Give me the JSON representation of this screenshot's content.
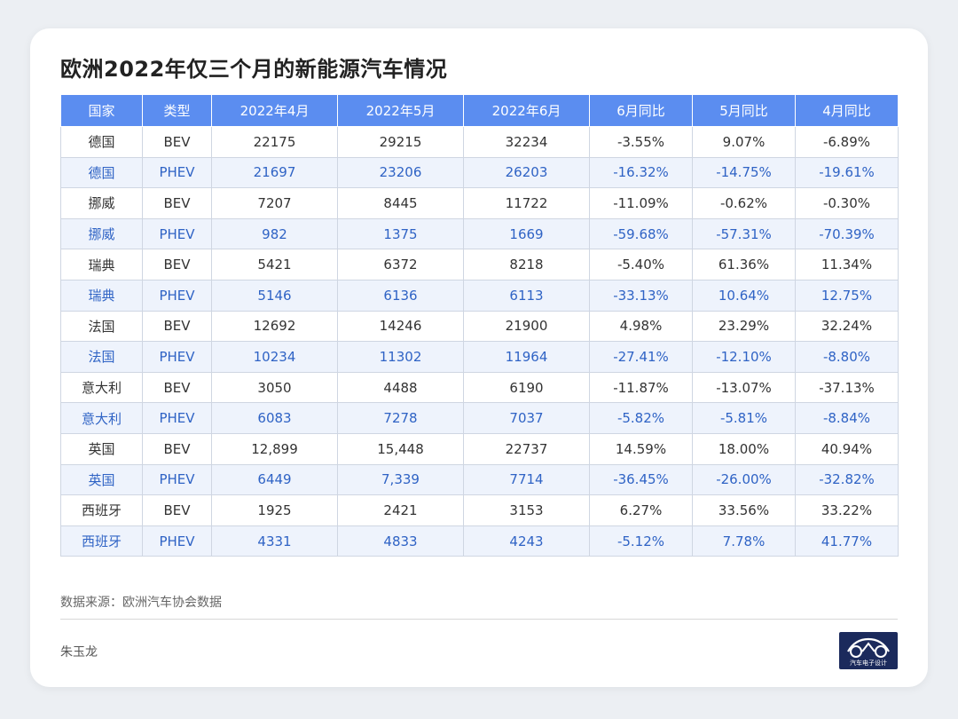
{
  "title": "欧洲2022年仅三个月的新能源汽车情况",
  "footer": {
    "source": "数据来源：欧洲汽车协会数据",
    "author": "朱玉龙"
  },
  "logo": {
    "text": "汽车电子设计",
    "bg_color": "#1b2a5c"
  },
  "colors": {
    "header_bg": "#5b8df0",
    "alt_row_bg": "#eef3fc",
    "alt_row_text": "#2f63c5"
  },
  "chart_data": {
    "type": "table",
    "title": "欧洲2022年仅三个月的新能源汽车情况",
    "columns": [
      "国家",
      "类型",
      "2022年4月",
      "2022年5月",
      "2022年6月",
      "6月同比",
      "5月同比",
      "4月同比"
    ],
    "rows": [
      [
        "德国",
        "BEV",
        "22175",
        "29215",
        "32234",
        "-3.55%",
        "9.07%",
        "-6.89%"
      ],
      [
        "德国",
        "PHEV",
        "21697",
        "23206",
        "26203",
        "-16.32%",
        "-14.75%",
        "-19.61%"
      ],
      [
        "挪威",
        "BEV",
        "7207",
        "8445",
        "11722",
        "-11.09%",
        "-0.62%",
        "-0.30%"
      ],
      [
        "挪威",
        "PHEV",
        "982",
        "1375",
        "1669",
        "-59.68%",
        "-57.31%",
        "-70.39%"
      ],
      [
        "瑞典",
        "BEV",
        "5421",
        "6372",
        "8218",
        "-5.40%",
        "61.36%",
        "11.34%"
      ],
      [
        "瑞典",
        "PHEV",
        "5146",
        "6136",
        "6113",
        "-33.13%",
        "10.64%",
        "12.75%"
      ],
      [
        "法国",
        "BEV",
        "12692",
        "14246",
        "21900",
        "4.98%",
        "23.29%",
        "32.24%"
      ],
      [
        "法国",
        "PHEV",
        "10234",
        "11302",
        "11964",
        "-27.41%",
        "-12.10%",
        "-8.80%"
      ],
      [
        "意大利",
        "BEV",
        "3050",
        "4488",
        "6190",
        "-11.87%",
        "-13.07%",
        "-37.13%"
      ],
      [
        "意大利",
        "PHEV",
        "6083",
        "7278",
        "7037",
        "-5.82%",
        "-5.81%",
        "-8.84%"
      ],
      [
        "英国",
        "BEV",
        "12,899",
        "15,448",
        "22737",
        "14.59%",
        "18.00%",
        "40.94%"
      ],
      [
        "英国",
        "PHEV",
        "6449",
        "7,339",
        "7714",
        "-36.45%",
        "-26.00%",
        "-32.82%"
      ],
      [
        "西班牙",
        "BEV",
        "1925",
        "2421",
        "3153",
        "6.27%",
        "33.56%",
        "33.22%"
      ],
      [
        "西班牙",
        "PHEV",
        "4331",
        "4833",
        "4243",
        "-5.12%",
        "7.78%",
        "41.77%"
      ]
    ]
  }
}
